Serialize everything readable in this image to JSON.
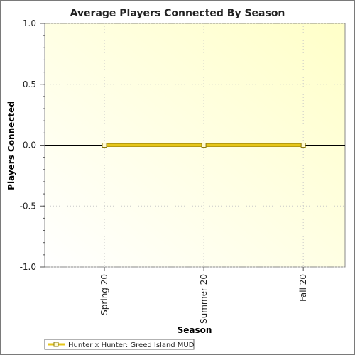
{
  "chart_data": {
    "type": "line",
    "title": "Average Players Connected By Season",
    "xlabel": "Season",
    "ylabel": "Players Connected",
    "categories": [
      "Spring 20",
      "Summer 20",
      "Fall 20"
    ],
    "series": [
      {
        "name": "Hunter x Hunter: Greed Island MUD",
        "values": [
          0,
          0,
          0
        ],
        "color": "#e6c619",
        "marker_fill": "#fffad0"
      }
    ],
    "ylim": [
      -1.0,
      1.0
    ],
    "yticks": [
      "1.0",
      "0.5",
      "0.0",
      "-0.5",
      "-1.0"
    ],
    "ytick_values": [
      1.0,
      0.5,
      0.0,
      -0.5,
      -1.0
    ],
    "grid": true,
    "legend_position": "bottom-left"
  }
}
